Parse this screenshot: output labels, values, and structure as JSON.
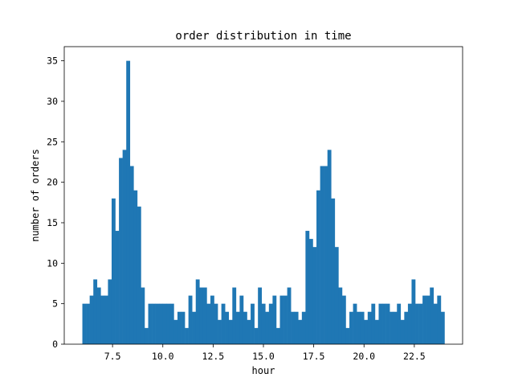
{
  "chart_data": {
    "type": "bar",
    "title": "order distribution in time",
    "xlabel": "hour",
    "ylabel": "number of orders",
    "xlim": [
      5.1,
      24.9
    ],
    "ylim": [
      0,
      36.75
    ],
    "x_ticks": [
      7.5,
      10.0,
      12.5,
      15.0,
      17.5,
      20.0,
      22.5
    ],
    "x_tick_labels": [
      "7.5",
      "10.0",
      "12.5",
      "15.0",
      "17.5",
      "20.0",
      "22.5"
    ],
    "y_ticks": [
      0,
      5,
      10,
      15,
      20,
      25,
      30,
      35
    ],
    "y_tick_labels": [
      "0",
      "5",
      "10",
      "15",
      "20",
      "25",
      "30",
      "35"
    ],
    "bar_color": "#1f77b4",
    "bins": {
      "start": 6.0,
      "end": 24.0,
      "values": [
        5,
        5,
        6,
        8,
        7,
        6,
        6,
        8,
        18,
        14,
        23,
        24,
        35,
        22,
        19,
        17,
        7,
        2,
        5,
        5,
        5,
        5,
        5,
        5,
        5,
        3,
        4,
        4,
        2,
        6,
        4,
        8,
        7,
        7,
        5,
        6,
        5,
        3,
        5,
        4,
        3,
        7,
        4,
        6,
        4,
        3,
        5,
        2,
        7,
        5,
        4,
        5,
        6,
        2,
        6,
        6,
        7,
        4,
        4,
        3,
        4,
        14,
        13,
        12,
        19,
        22,
        22,
        24,
        18,
        12,
        7,
        6,
        2,
        4,
        5,
        4,
        4,
        3,
        4,
        5,
        3,
        5,
        5,
        5,
        4,
        4,
        5,
        3,
        4,
        5,
        8,
        5,
        5,
        6,
        6,
        7,
        5,
        6,
        4
      ]
    }
  }
}
